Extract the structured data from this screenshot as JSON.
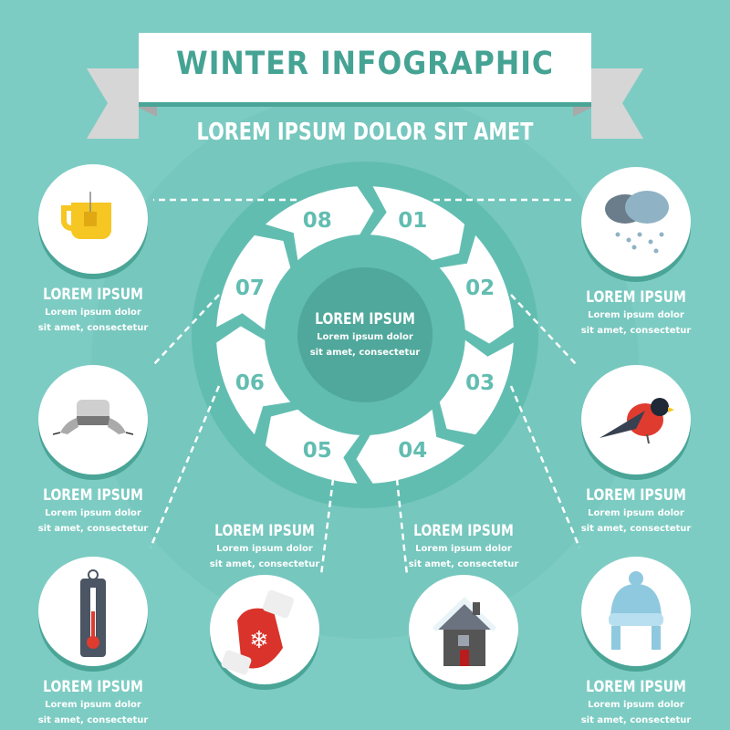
{
  "header": {
    "title": "WINTER INFOGRAPHIC",
    "subtitle": "LOREM IPSUM DOLOR SIT AMET"
  },
  "center": {
    "title": "LOREM IPSUM",
    "text1": "Lorem ipsum dolor",
    "text2": "sit amet, consectetur"
  },
  "segments": [
    "01",
    "02",
    "03",
    "04",
    "05",
    "06",
    "07",
    "08"
  ],
  "items": [
    {
      "icon": "tea-cup-icon",
      "title": "LOREM IPSUM",
      "text1": "Lorem ipsum dolor",
      "text2": "sit amet, consectetur"
    },
    {
      "icon": "fur-hat-icon",
      "title": "LOREM IPSUM",
      "text1": "Lorem ipsum dolor",
      "text2": "sit amet, consectetur"
    },
    {
      "icon": "thermometer-icon",
      "title": "LOREM IPSUM",
      "text1": "Lorem ipsum dolor",
      "text2": "sit amet, consectetur"
    },
    {
      "icon": "mitten-icon",
      "title": "LOREM IPSUM",
      "text1": "Lorem ipsum dolor",
      "text2": "sit amet, consectetur"
    },
    {
      "icon": "snowy-house-icon",
      "title": "LOREM IPSUM",
      "text1": "Lorem ipsum dolor",
      "text2": "sit amet, consectetur"
    },
    {
      "icon": "snow-cloud-icon",
      "title": "LOREM IPSUM",
      "text1": "Lorem ipsum dolor",
      "text2": "sit amet, consectetur"
    },
    {
      "icon": "bullfinch-icon",
      "title": "LOREM IPSUM",
      "text1": "Lorem ipsum dolor",
      "text2": "sit amet, consectetur"
    },
    {
      "icon": "knit-hat-icon",
      "title": "LOREM IPSUM",
      "text1": "Lorem ipsum dolor",
      "text2": "sit amet, consectetur"
    }
  ],
  "colors": {
    "background": "#7dccc3",
    "accent": "#45a394",
    "center": "#4fa89b",
    "ribbon": "#d6d6d6"
  }
}
